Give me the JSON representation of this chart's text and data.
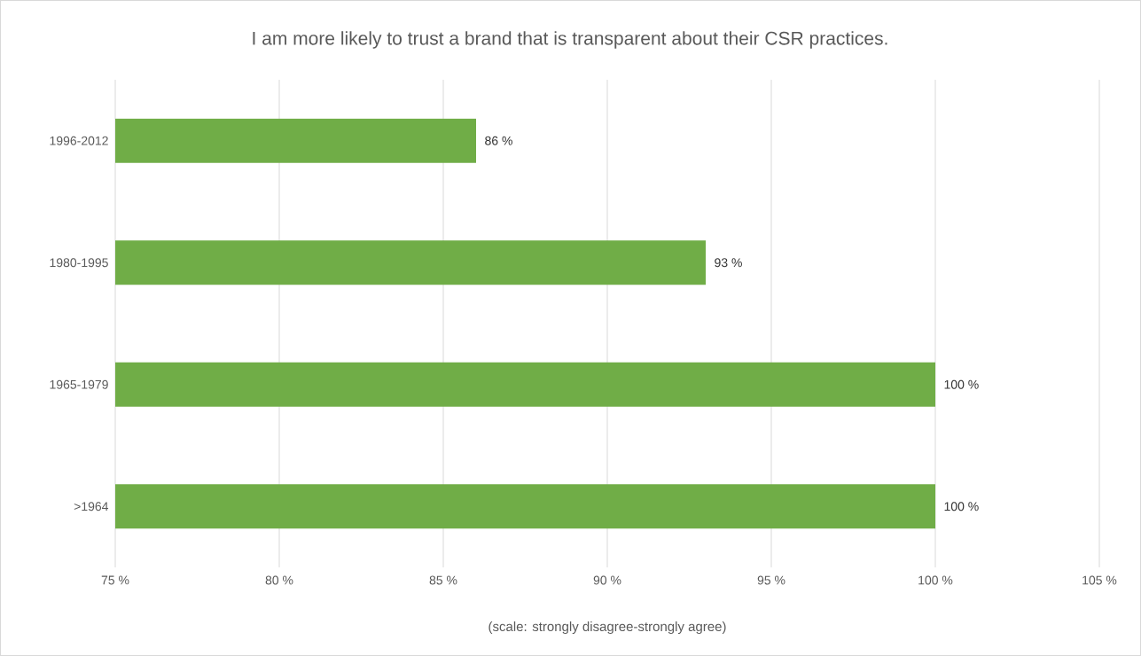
{
  "chart_data": {
    "type": "bar",
    "orientation": "horizontal",
    "title": "I am more likely to trust a brand that is transparent about their CSR practices.",
    "xlabel": "(scale: strongly disagree-strongly agree)",
    "categories": [
      "1996-2012",
      "1980-1995",
      "1965-1979",
      ">1964"
    ],
    "values": [
      86,
      93,
      100,
      100
    ],
    "value_labels": [
      "86 %",
      "93 %",
      "100 %",
      "100 %"
    ],
    "color": "#70ad47",
    "xlim": [
      75,
      105
    ],
    "xticks": [
      {
        "value": 75,
        "label": "75 %"
      },
      {
        "value": 80,
        "label": "80 %"
      },
      {
        "value": 85,
        "label": "85 %"
      },
      {
        "value": 90,
        "label": "90 %"
      },
      {
        "value": 95,
        "label": "95 %"
      },
      {
        "value": 100,
        "label": "100 %"
      },
      {
        "value": 105,
        "label": "105 %"
      }
    ],
    "grid": "x"
  }
}
